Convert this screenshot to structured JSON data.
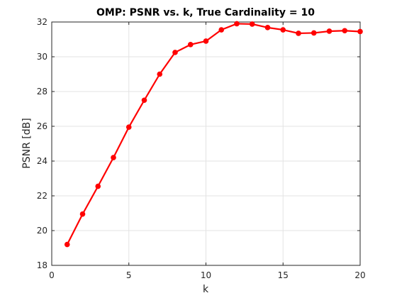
{
  "chart_data": {
    "type": "line",
    "title": "OMP: PSNR vs. k, True Cardinality = 10",
    "xlabel": "k",
    "ylabel": "PSNR [dB]",
    "xlim": [
      0,
      20
    ],
    "ylim": [
      18,
      32
    ],
    "xticks": [
      0,
      5,
      10,
      15,
      20
    ],
    "yticks": [
      18,
      20,
      22,
      24,
      26,
      28,
      30,
      32
    ],
    "grid": true,
    "legend": "none",
    "series": [
      {
        "color": "#ff0000",
        "x": [
          1,
          2,
          3,
          4,
          5,
          6,
          7,
          8,
          9,
          10,
          11,
          12,
          13,
          14,
          15,
          16,
          17,
          18,
          19,
          20
        ],
        "y": [
          19.2,
          20.95,
          22.55,
          24.2,
          25.95,
          27.5,
          29.0,
          30.25,
          30.7,
          30.9,
          31.55,
          31.9,
          31.88,
          31.68,
          31.55,
          31.35,
          31.37,
          31.47,
          31.5,
          31.45
        ]
      }
    ]
  }
}
